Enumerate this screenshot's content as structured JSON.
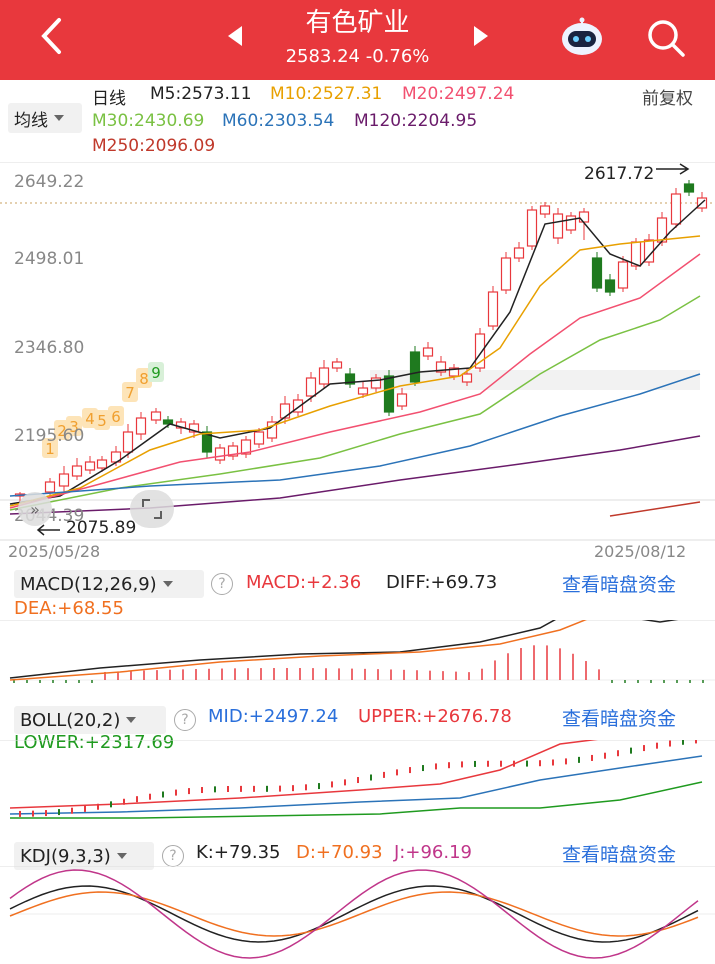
{
  "header": {
    "title": "有色矿业",
    "price_change": "2583.24 -0.76%",
    "back_icon": "chevron-left-icon",
    "prev_icon": "triangle-left-icon",
    "next_icon": "triangle-right-icon",
    "robot_icon": "robot-assistant-icon",
    "search_icon": "search-icon"
  },
  "ma_bar": {
    "selector": "均线",
    "period": "日线",
    "m5": "M5:2573.11",
    "m10": "M10:2527.31",
    "m20": "M20:2497.24",
    "m30": "M30:2430.69",
    "m60": "M60:2303.54",
    "m120": "M120:2204.95",
    "m250": "M250:2096.09",
    "adjust": "前复权"
  },
  "colors": {
    "up": "#e8383d",
    "down": "#1f7a1f",
    "m5": "#222222",
    "m10": "#e8a000",
    "m20": "#f25070",
    "m30": "#7ac143",
    "m60": "#2b73b8",
    "m120": "#6a1b6a",
    "m250": "#c0392b"
  },
  "main_chart": {
    "price_labels": [
      "2649.22",
      "2498.01",
      "2346.80",
      "2195.60",
      "2044.39"
    ],
    "high_marker": "2617.72",
    "low_marker": "2075.89",
    "start_date": "2025/05/28",
    "end_date": "2025/08/12",
    "seq_counts": [
      "1",
      "2",
      "3",
      "4",
      "5",
      "6",
      "7",
      "8",
      "9"
    ]
  },
  "macd": {
    "selector": "MACD(12,26,9)",
    "macd": "MACD:+2.36",
    "diff": "DIFF:+69.73",
    "dea": "DEA:+68.55",
    "link": "查看暗盘资金"
  },
  "boll": {
    "selector": "BOLL(20,2)",
    "mid": "MID:+2497.24",
    "upper": "UPPER:+2676.78",
    "lower": "LOWER:+2317.69",
    "link": "查看暗盘资金"
  },
  "kdj": {
    "selector": "KDJ(9,3,3)",
    "k": "K:+79.35",
    "d": "D:+70.93",
    "j": "J:+96.19",
    "link": "查看暗盘资金"
  }
}
